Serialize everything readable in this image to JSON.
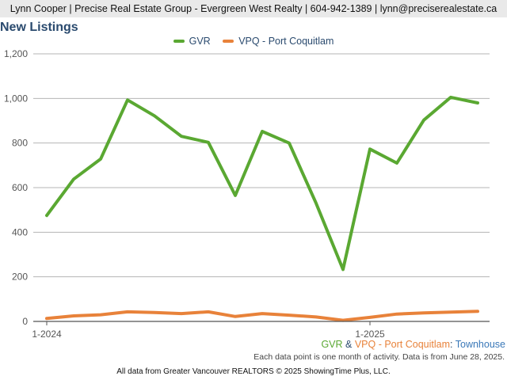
{
  "header": {
    "contact": "Lynn Cooper | Precise Real Estate Group - Evergreen West Realty | 604-942-1389 | lynn@preciserealestate.ca"
  },
  "title": "New Listings",
  "colors": {
    "gvr": "#5aa832",
    "vpq": "#e8823a",
    "grid": "#b5b5b5",
    "title": "#2a4a6e"
  },
  "chart_data": {
    "type": "line",
    "x": [
      "1-2024",
      "2-2024",
      "3-2024",
      "4-2024",
      "5-2024",
      "6-2024",
      "7-2024",
      "8-2024",
      "9-2024",
      "10-2024",
      "11-2024",
      "12-2024",
      "1-2025",
      "2-2025",
      "3-2025",
      "4-2025",
      "5-2025"
    ],
    "x_tick_labels": [
      "1-2024",
      "1-2025"
    ],
    "series": [
      {
        "name": "GVR",
        "color": "#5aa832",
        "values": [
          475,
          638,
          728,
          993,
          922,
          830,
          803,
          565,
          852,
          800,
          530,
          233,
          773,
          710,
          903,
          1005,
          980
        ]
      },
      {
        "name": "VPQ - Port Coquitlam",
        "color": "#e8823a",
        "values": [
          13,
          25,
          30,
          43,
          40,
          35,
          43,
          22,
          35,
          28,
          20,
          5,
          18,
          33,
          38,
          42,
          45
        ]
      }
    ],
    "ylim": [
      0,
      1200
    ],
    "yticks": [
      0,
      200,
      400,
      600,
      800,
      1000,
      1200
    ],
    "ytick_labels": [
      "0",
      "200",
      "400",
      "600",
      "800",
      "1,000",
      "1,200"
    ],
    "grid": true,
    "legend_position": "top-center"
  },
  "footer": {
    "series1": "GVR",
    "amp": " & ",
    "series2": "VPQ - Port Coquitlam",
    "colon": ": ",
    "property_type": "Townhouse",
    "note": "Each data point is one month of activity. Data is from June 28, 2025.",
    "source": "All data from Greater Vancouver REALTORS © 2025 ShowingTime Plus, LLC."
  }
}
